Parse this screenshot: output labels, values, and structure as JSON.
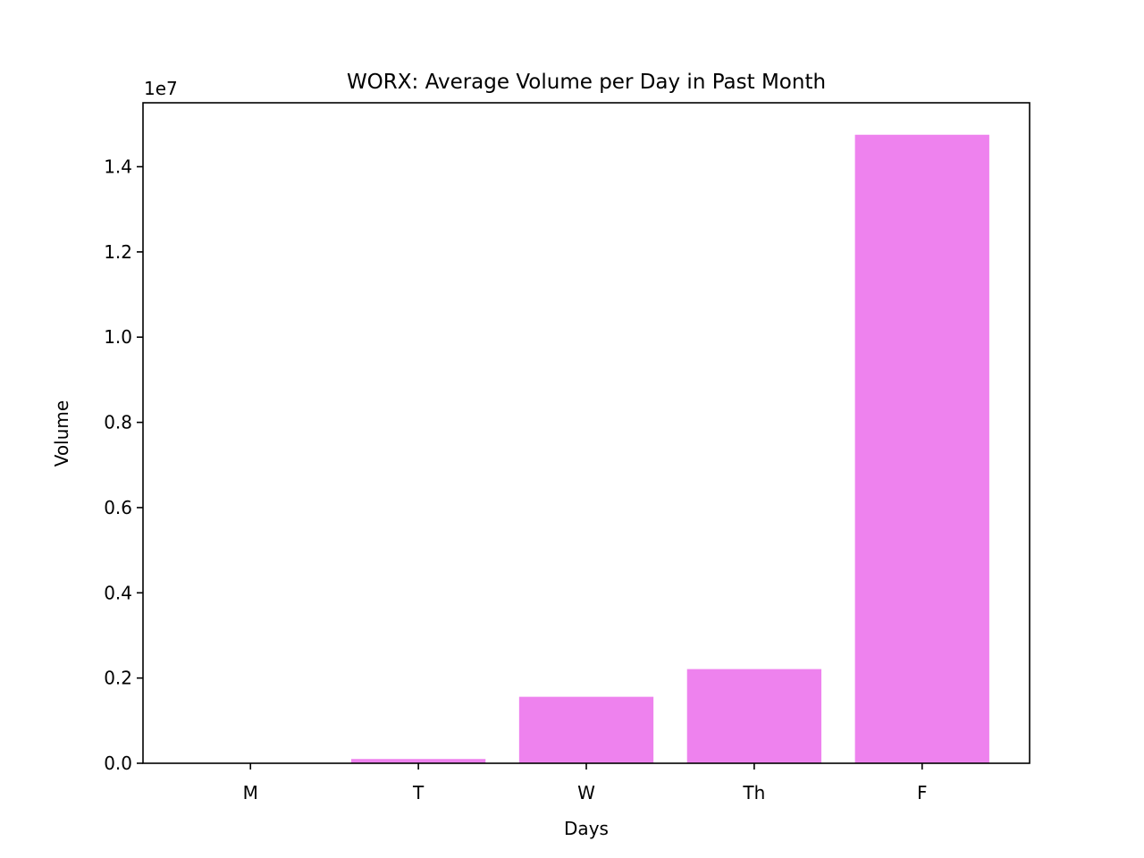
{
  "chart_data": {
    "type": "bar",
    "title": "WORX: Average Volume per Day in Past Month",
    "xlabel": "Days",
    "ylabel": "Volume",
    "offset_label": "1e7",
    "categories": [
      "M",
      "T",
      "W",
      "Th",
      "F"
    ],
    "values": [
      0,
      100000,
      1560000,
      2210000,
      14750000
    ],
    "ylim": [
      0,
      15500000
    ],
    "yticks": [
      0,
      2000000,
      4000000,
      6000000,
      8000000,
      10000000,
      12000000,
      14000000
    ],
    "ytick_labels": [
      "0.0",
      "0.2",
      "0.4",
      "0.6",
      "0.8",
      "1.0",
      "1.2",
      "1.4"
    ],
    "bar_color": "#ee82ee",
    "grid": false,
    "legend": false
  }
}
